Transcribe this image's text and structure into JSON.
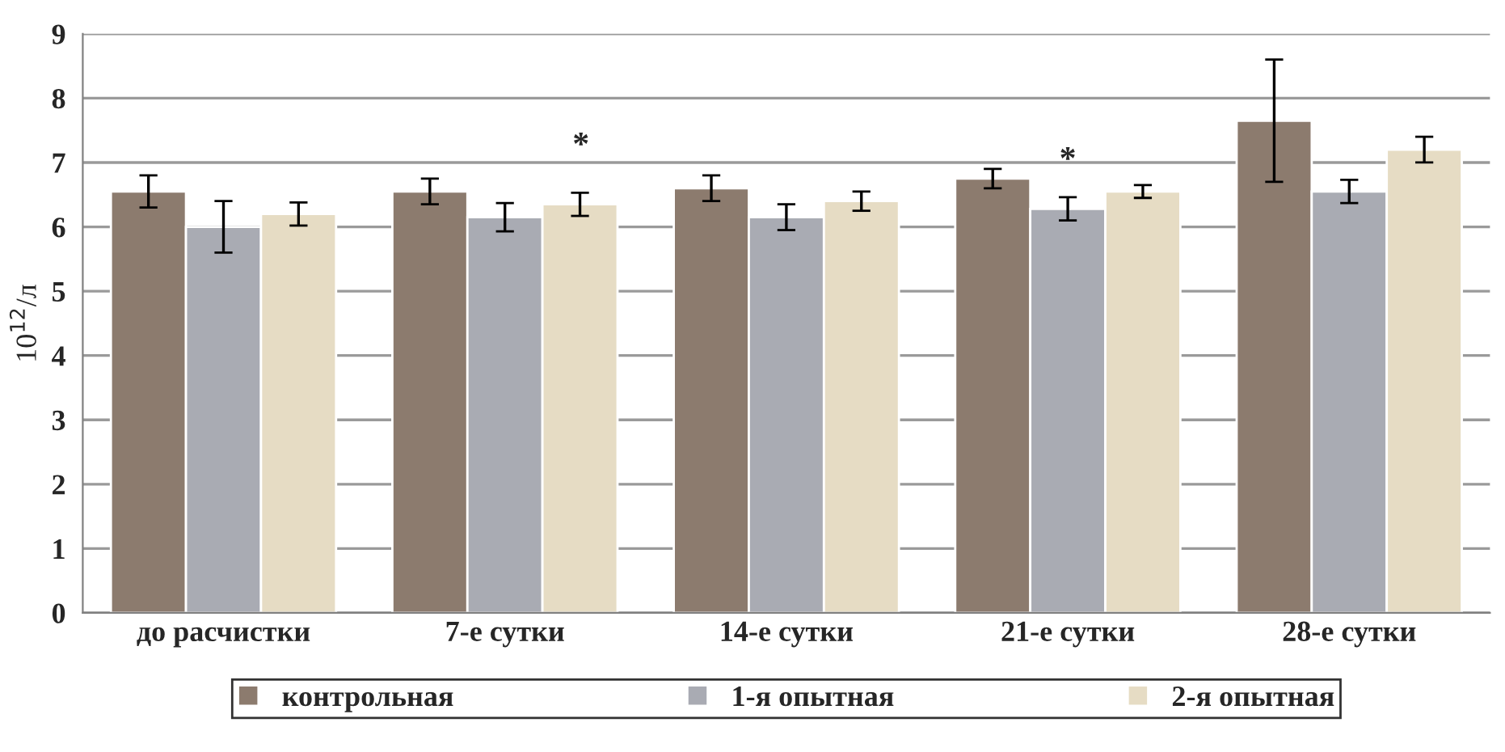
{
  "chart_data": {
    "type": "bar",
    "ylabel": "10$^{12}$/л",
    "categories": [
      "до расчистки",
      "7-е сутки",
      "14-е сутки",
      "21-е сутки",
      "28-е сутки"
    ],
    "series": [
      {
        "name": "контрольная",
        "color": "#8c7b6e",
        "values": [
          6.55,
          6.55,
          6.6,
          6.75,
          7.65
        ],
        "errors": [
          0.25,
          0.2,
          0.2,
          0.15,
          0.95
        ]
      },
      {
        "name": "1-я опытная",
        "color": "#a9abb3",
        "values": [
          6.0,
          6.15,
          6.15,
          6.28,
          6.55
        ],
        "errors": [
          0.4,
          0.22,
          0.2,
          0.18,
          0.18
        ]
      },
      {
        "name": "2-я опытная",
        "color": "#e6dcc4",
        "values": [
          6.2,
          6.35,
          6.4,
          6.55,
          7.2
        ],
        "errors": [
          0.18,
          0.18,
          0.15,
          0.1,
          0.2
        ]
      }
    ],
    "annotations": [
      "*",
      "*"
    ],
    "ylim": [
      0,
      9
    ],
    "yticks": [
      0,
      1,
      2,
      3,
      4,
      5,
      6,
      7,
      8,
      9
    ],
    "grid": "y",
    "legend": "bottom"
  }
}
